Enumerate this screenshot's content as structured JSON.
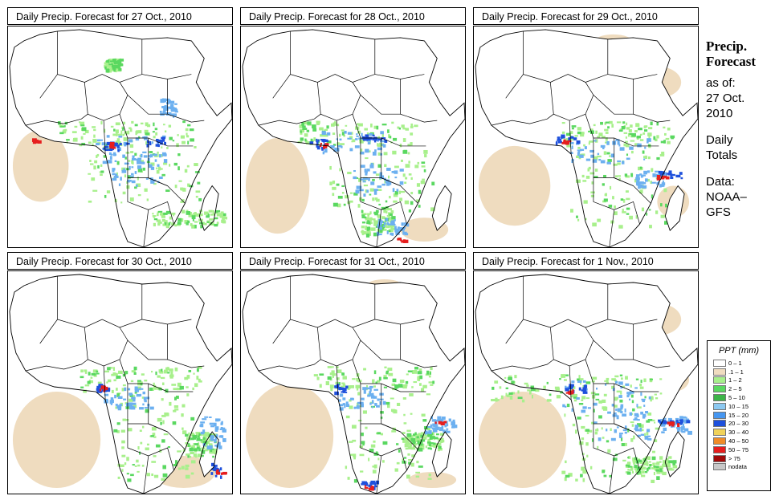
{
  "panels": [
    {
      "title": "Daily Precip. Forecast for  27 Oct., 2010"
    },
    {
      "title": "Daily Precip. Forecast for  28 Oct., 2010"
    },
    {
      "title": "Daily Precip. Forecast for  29 Oct., 2010"
    },
    {
      "title": "Daily Precip. Forecast for  30 Oct., 2010"
    },
    {
      "title": "Daily Precip. Forecast for  31 Oct., 2010"
    },
    {
      "title": "Daily Precip. Forecast for  1 Nov., 2010"
    }
  ],
  "sidebar": {
    "heading_line1": "Precip.",
    "heading_line2": "Forecast",
    "asof_line1": "as of:",
    "asof_line2": "27 Oct.",
    "asof_line3": "2010",
    "totals_line1": "Daily",
    "totals_line2": "Totals",
    "data_line1": "Data:",
    "data_line2": "NOAA–",
    "data_line3": "GFS"
  },
  "legend": {
    "title": "PPT (mm)",
    "items": [
      {
        "label": "0 – 1",
        "color": "#ffffff"
      },
      {
        "label": ".1 – 1",
        "color": "#f0dcc0"
      },
      {
        "label": "1 – 2",
        "color": "#a8f08c"
      },
      {
        "label": "2 – 5",
        "color": "#5ad860"
      },
      {
        "label": "5 – 10",
        "color": "#3cb448"
      },
      {
        "label": "10 – 15",
        "color": "#8cc8f0"
      },
      {
        "label": "15 – 20",
        "color": "#4696f0"
      },
      {
        "label": "20 – 30",
        "color": "#1e50dc"
      },
      {
        "label": "30 – 40",
        "color": "#f0d25a"
      },
      {
        "label": "40 – 50",
        "color": "#f08c28"
      },
      {
        "label": "50 – 75",
        "color": "#e61e1e"
      },
      {
        "label": "> 75",
        "color": "#a00a0a"
      },
      {
        "label": "nodata",
        "color": "#c8c8c8"
      }
    ]
  },
  "map_colors": {
    "land": "#ffffff",
    "dry": "#efdcbf",
    "light": "#a8f08c",
    "moderate": "#5ad860",
    "wet": "#6cb0f0",
    "heavy": "#1e50dc",
    "extreme": "#e61e1e",
    "border": "#000000"
  }
}
